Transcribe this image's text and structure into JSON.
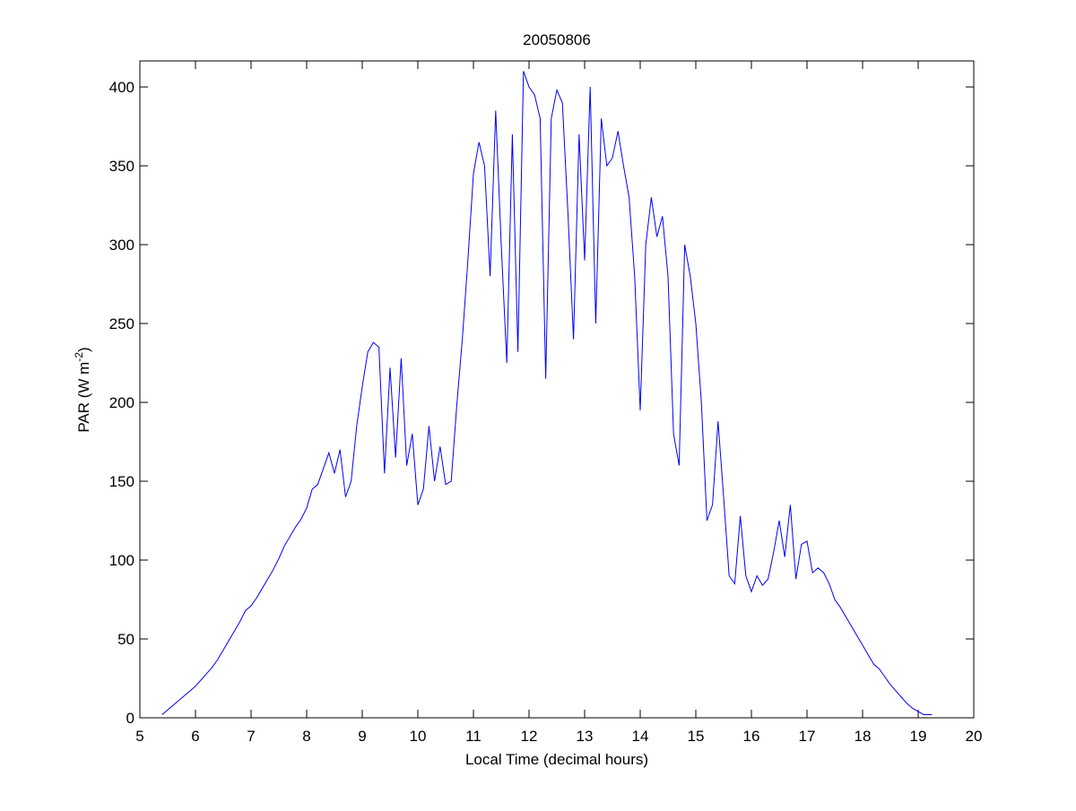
{
  "chart_data": {
    "type": "line",
    "title": "20050806",
    "xlabel": "Local Time (decimal hours)",
    "ylabel": "PAR (W m",
    "ylabel_sup": "-2",
    "ylabel_end": ")",
    "xlim": [
      5,
      20
    ],
    "ylim": [
      0,
      416.5
    ],
    "xticks": [
      5,
      6,
      7,
      8,
      9,
      10,
      11,
      12,
      13,
      14,
      15,
      16,
      17,
      18,
      19,
      20
    ],
    "yticks": [
      0,
      50,
      100,
      150,
      200,
      250,
      300,
      350,
      400
    ],
    "grid": false,
    "x": [
      5.4,
      5.5,
      5.6,
      5.7,
      5.8,
      5.9,
      6.0,
      6.1,
      6.2,
      6.3,
      6.4,
      6.5,
      6.6,
      6.7,
      6.8,
      6.9,
      7.0,
      7.1,
      7.2,
      7.3,
      7.4,
      7.5,
      7.6,
      7.7,
      7.8,
      7.9,
      8.0,
      8.1,
      8.2,
      8.3,
      8.4,
      8.5,
      8.6,
      8.7,
      8.8,
      8.9,
      9.0,
      9.1,
      9.2,
      9.3,
      9.4,
      9.5,
      9.6,
      9.7,
      9.8,
      9.9,
      10.0,
      10.1,
      10.2,
      10.3,
      10.4,
      10.5,
      10.6,
      10.7,
      10.8,
      10.9,
      11.0,
      11.1,
      11.2,
      11.3,
      11.4,
      11.5,
      11.6,
      11.7,
      11.8,
      11.9,
      12.0,
      12.1,
      12.2,
      12.3,
      12.4,
      12.5,
      12.6,
      12.7,
      12.8,
      12.9,
      13.0,
      13.1,
      13.2,
      13.3,
      13.4,
      13.5,
      13.6,
      13.7,
      13.8,
      13.9,
      14.0,
      14.1,
      14.2,
      14.3,
      14.4,
      14.5,
      14.6,
      14.7,
      14.8,
      14.9,
      15.0,
      15.1,
      15.2,
      15.3,
      15.4,
      15.5,
      15.6,
      15.7,
      15.8,
      15.9,
      16.0,
      16.1,
      16.2,
      16.3,
      16.4,
      16.5,
      16.6,
      16.7,
      16.8,
      16.9,
      17.0,
      17.1,
      17.2,
      17.3,
      17.4,
      17.5,
      17.6,
      17.7,
      17.8,
      17.9,
      18.0,
      18.1,
      18.2,
      18.3,
      18.4,
      18.5,
      18.6,
      18.7,
      18.8,
      18.9,
      19.0,
      19.1,
      19.25
    ],
    "series": [
      {
        "name": "PAR",
        "color": "#0000ff",
        "values": [
          2,
          5,
          8,
          11,
          14,
          17,
          20,
          24,
          28,
          32,
          37,
          43,
          49,
          55,
          61,
          68,
          71,
          76,
          82,
          88,
          94,
          101,
          109,
          115,
          121,
          126,
          133,
          145,
          148,
          158,
          168,
          155,
          170,
          140,
          150,
          185,
          210,
          232,
          238,
          235,
          155,
          222,
          165,
          228,
          160,
          180,
          135,
          145,
          185,
          150,
          172,
          148,
          150,
          198,
          240,
          290,
          345,
          365,
          350,
          280,
          385,
          300,
          225,
          370,
          232,
          410,
          400,
          395,
          380,
          215,
          380,
          398,
          390,
          320,
          240,
          370,
          290,
          400,
          250,
          380,
          350,
          355,
          372,
          350,
          330,
          280,
          195,
          300,
          330,
          305,
          318,
          280,
          180,
          160,
          300,
          280,
          250,
          200,
          125,
          135,
          188,
          140,
          90,
          85,
          128,
          90,
          80,
          90,
          84,
          88,
          105,
          125,
          102,
          135,
          88,
          110,
          112,
          92,
          95,
          92,
          85,
          75,
          70,
          64,
          58,
          52,
          46,
          40,
          34,
          31,
          26,
          21,
          17,
          13,
          9,
          6,
          4,
          2,
          2
        ]
      }
    ]
  }
}
